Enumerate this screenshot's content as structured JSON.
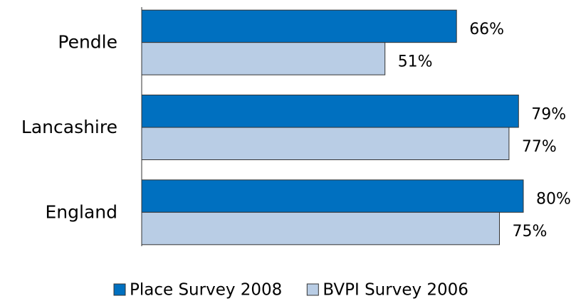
{
  "chart_data": {
    "type": "hbar",
    "categories": [
      "Pendle",
      "Lancashire",
      "England"
    ],
    "series": [
      {
        "name": "Place Survey 2008",
        "color": "#0070c0",
        "values": [
          66,
          79,
          80
        ],
        "value_labels": [
          "66%",
          "79%",
          "80%"
        ]
      },
      {
        "name": "BVPI Survey 2006",
        "color": "#b9cde5",
        "values": [
          51,
          77,
          75
        ],
        "value_labels": [
          "51%",
          "77%",
          "75%"
        ]
      }
    ],
    "xlim": [
      0,
      90
    ],
    "legend": "bottom"
  }
}
